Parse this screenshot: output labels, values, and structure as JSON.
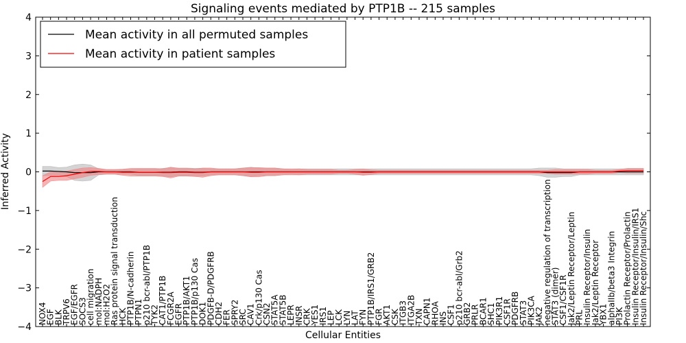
{
  "chart_data": {
    "type": "line",
    "title": "Signaling events mediated by PTP1B -- 215 samples",
    "xlabel": "Cellular Entities",
    "ylabel": "Inferred Activity",
    "ylim": [
      -4,
      4
    ],
    "yticks": [
      -4,
      -3,
      -2,
      -1,
      0,
      1,
      2,
      3,
      4
    ],
    "ytick_labels": [
      "−4",
      "−3",
      "−2",
      "−1",
      "0",
      "1",
      "2",
      "3",
      "4"
    ],
    "grid": false,
    "legend_position": "top-left",
    "categories": [
      "NOX4",
      "EGF",
      "BLK",
      "TRPV6",
      "EGF/EGFR",
      "SOCS3",
      "cell migration",
      "mol:NADPH",
      "mol:H2O2",
      "Ras protein signal transduction",
      "HCK",
      "PTP1B/N-cadherin",
      "PTPN1",
      "p210 bcr-abl/PTP1B",
      "TYK2",
      "CAT1/PTP1B",
      "FCGR2A",
      "EGFR",
      "PTP1B/AKT1",
      "PTP1B/p130 Cas",
      "DOK1",
      "PDGFB-D/PDGFRB",
      "CDH2",
      "FER",
      "SPRY2",
      "SRC",
      "CAV1",
      "Crk/p130 Cas",
      "CSN2",
      "STAT5A",
      "STAT5B",
      "LEPR",
      "INSR",
      "CRK",
      "YES1",
      "IRS1",
      "LEP",
      "LCK",
      "LYN",
      "LAT",
      "FYN",
      "PTP1B/IRS1/GRB2",
      "FGR",
      "AKT1",
      "CSK",
      "ITGB3",
      "ITGA2B",
      "TXN",
      "CAPN1",
      "RHOA",
      "INS",
      "CSF1",
      "p210 bcr-abl/Grb2",
      "GRB2",
      "PRLR",
      "BCAR1",
      "SHC1",
      "PIK3R1",
      "CSF1R",
      "PDGFRB",
      "STAT3",
      "PIK3CA",
      "JAK2",
      "negative regulation of transcription",
      "STAT3 (dimer)",
      "CSF1/CSF1R",
      "Jak2/Leptin Receptor/Leptin",
      "PRL",
      "Insulin Receptor/Insulin",
      "Jak2/Leptin Receptor",
      "YBX1",
      "alphaIIb/beta3 Integrin",
      "PI3K",
      "Prolactin Receptor/Prolactin",
      "Insulin Receptor/Insulin/IRS1",
      "Insulin Receptor/Insulin/Shc"
    ],
    "series": [
      {
        "name": "Mean activity in all permuted samples",
        "color": "#000000",
        "band_color": "#b0b0b0",
        "values": [
          0.02,
          0.02,
          0.01,
          0.0,
          -0.02,
          -0.02,
          -0.02,
          0,
          0,
          0,
          0,
          0,
          -0.01,
          -0.01,
          -0.01,
          -0.01,
          -0.01,
          0,
          0,
          -0.01,
          -0.01,
          0,
          0,
          0,
          0,
          0,
          0,
          0,
          0,
          0,
          0,
          0,
          0,
          0,
          0,
          0,
          0,
          0,
          0,
          0,
          0,
          0,
          0,
          0,
          0,
          0,
          0,
          0,
          0,
          0,
          0,
          0,
          0,
          0,
          0,
          0,
          0,
          0,
          0,
          0,
          0,
          0,
          0,
          -0.02,
          -0.02,
          -0.02,
          -0.02,
          0,
          0,
          0,
          0,
          0,
          0,
          0,
          0,
          0
        ],
        "band": [
          0.12,
          0.12,
          0.1,
          0.12,
          0.2,
          0.22,
          0.2,
          0.08,
          0.06,
          0.06,
          0.06,
          0.06,
          0.08,
          0.08,
          0.08,
          0.1,
          0.12,
          0.1,
          0.1,
          0.1,
          0.1,
          0.08,
          0.08,
          0.08,
          0.08,
          0.1,
          0.12,
          0.1,
          0.1,
          0.1,
          0.08,
          0.06,
          0.08,
          0.08,
          0.08,
          0.08,
          0.08,
          0.08,
          0.08,
          0.08,
          0.08,
          0.08,
          0.08,
          0.08,
          0.08,
          0.08,
          0.08,
          0.08,
          0.08,
          0.08,
          0.08,
          0.08,
          0.08,
          0.08,
          0.08,
          0.08,
          0.08,
          0.08,
          0.08,
          0.08,
          0.08,
          0.08,
          0.1,
          0.12,
          0.12,
          0.1,
          0.1,
          0.08,
          0.08,
          0.08,
          0.08,
          0.08,
          0.08,
          0.08,
          0.08,
          0.08
        ]
      },
      {
        "name": "Mean activity in patient samples",
        "color": "#ff0000",
        "band_color": "#f08080",
        "values": [
          -0.25,
          -0.12,
          -0.12,
          -0.1,
          -0.06,
          -0.02,
          0.01,
          0.01,
          0,
          0,
          -0.01,
          -0.01,
          -0.01,
          -0.01,
          -0.01,
          -0.02,
          -0.02,
          -0.01,
          -0.01,
          -0.02,
          -0.02,
          0,
          0,
          0,
          0,
          0,
          -0.01,
          -0.01,
          0,
          0,
          0,
          0,
          0,
          0,
          0,
          0,
          0,
          0,
          0,
          0,
          -0.01,
          -0.01,
          0,
          0,
          0,
          0,
          0,
          0,
          0,
          0,
          0,
          0,
          0,
          0,
          0,
          0,
          0,
          0,
          0,
          0,
          0,
          0,
          0,
          0,
          0,
          0,
          0,
          0,
          0,
          0,
          0,
          0,
          0.02,
          0.03,
          0.03,
          0.03
        ],
        "band": [
          0.15,
          0.12,
          0.1,
          0.12,
          0.12,
          0.12,
          0.1,
          0.08,
          0.06,
          0.06,
          0.08,
          0.1,
          0.1,
          0.1,
          0.1,
          0.1,
          0.14,
          0.1,
          0.1,
          0.1,
          0.12,
          0.1,
          0.08,
          0.08,
          0.08,
          0.1,
          0.12,
          0.12,
          0.1,
          0.1,
          0.08,
          0.08,
          0.08,
          0.06,
          0.06,
          0.06,
          0.06,
          0.04,
          0.04,
          0.06,
          0.08,
          0.06,
          0.04,
          0.04,
          0.04,
          0.04,
          0.04,
          0.04,
          0.04,
          0.04,
          0.04,
          0.04,
          0.04,
          0.04,
          0.04,
          0.04,
          0.04,
          0.04,
          0.04,
          0.04,
          0.04,
          0.04,
          0.04,
          0.04,
          0.06,
          0.06,
          0.06,
          0.06,
          0.06,
          0.04,
          0.04,
          0.04,
          0.04,
          0.06,
          0.06,
          0.06
        ]
      }
    ]
  }
}
